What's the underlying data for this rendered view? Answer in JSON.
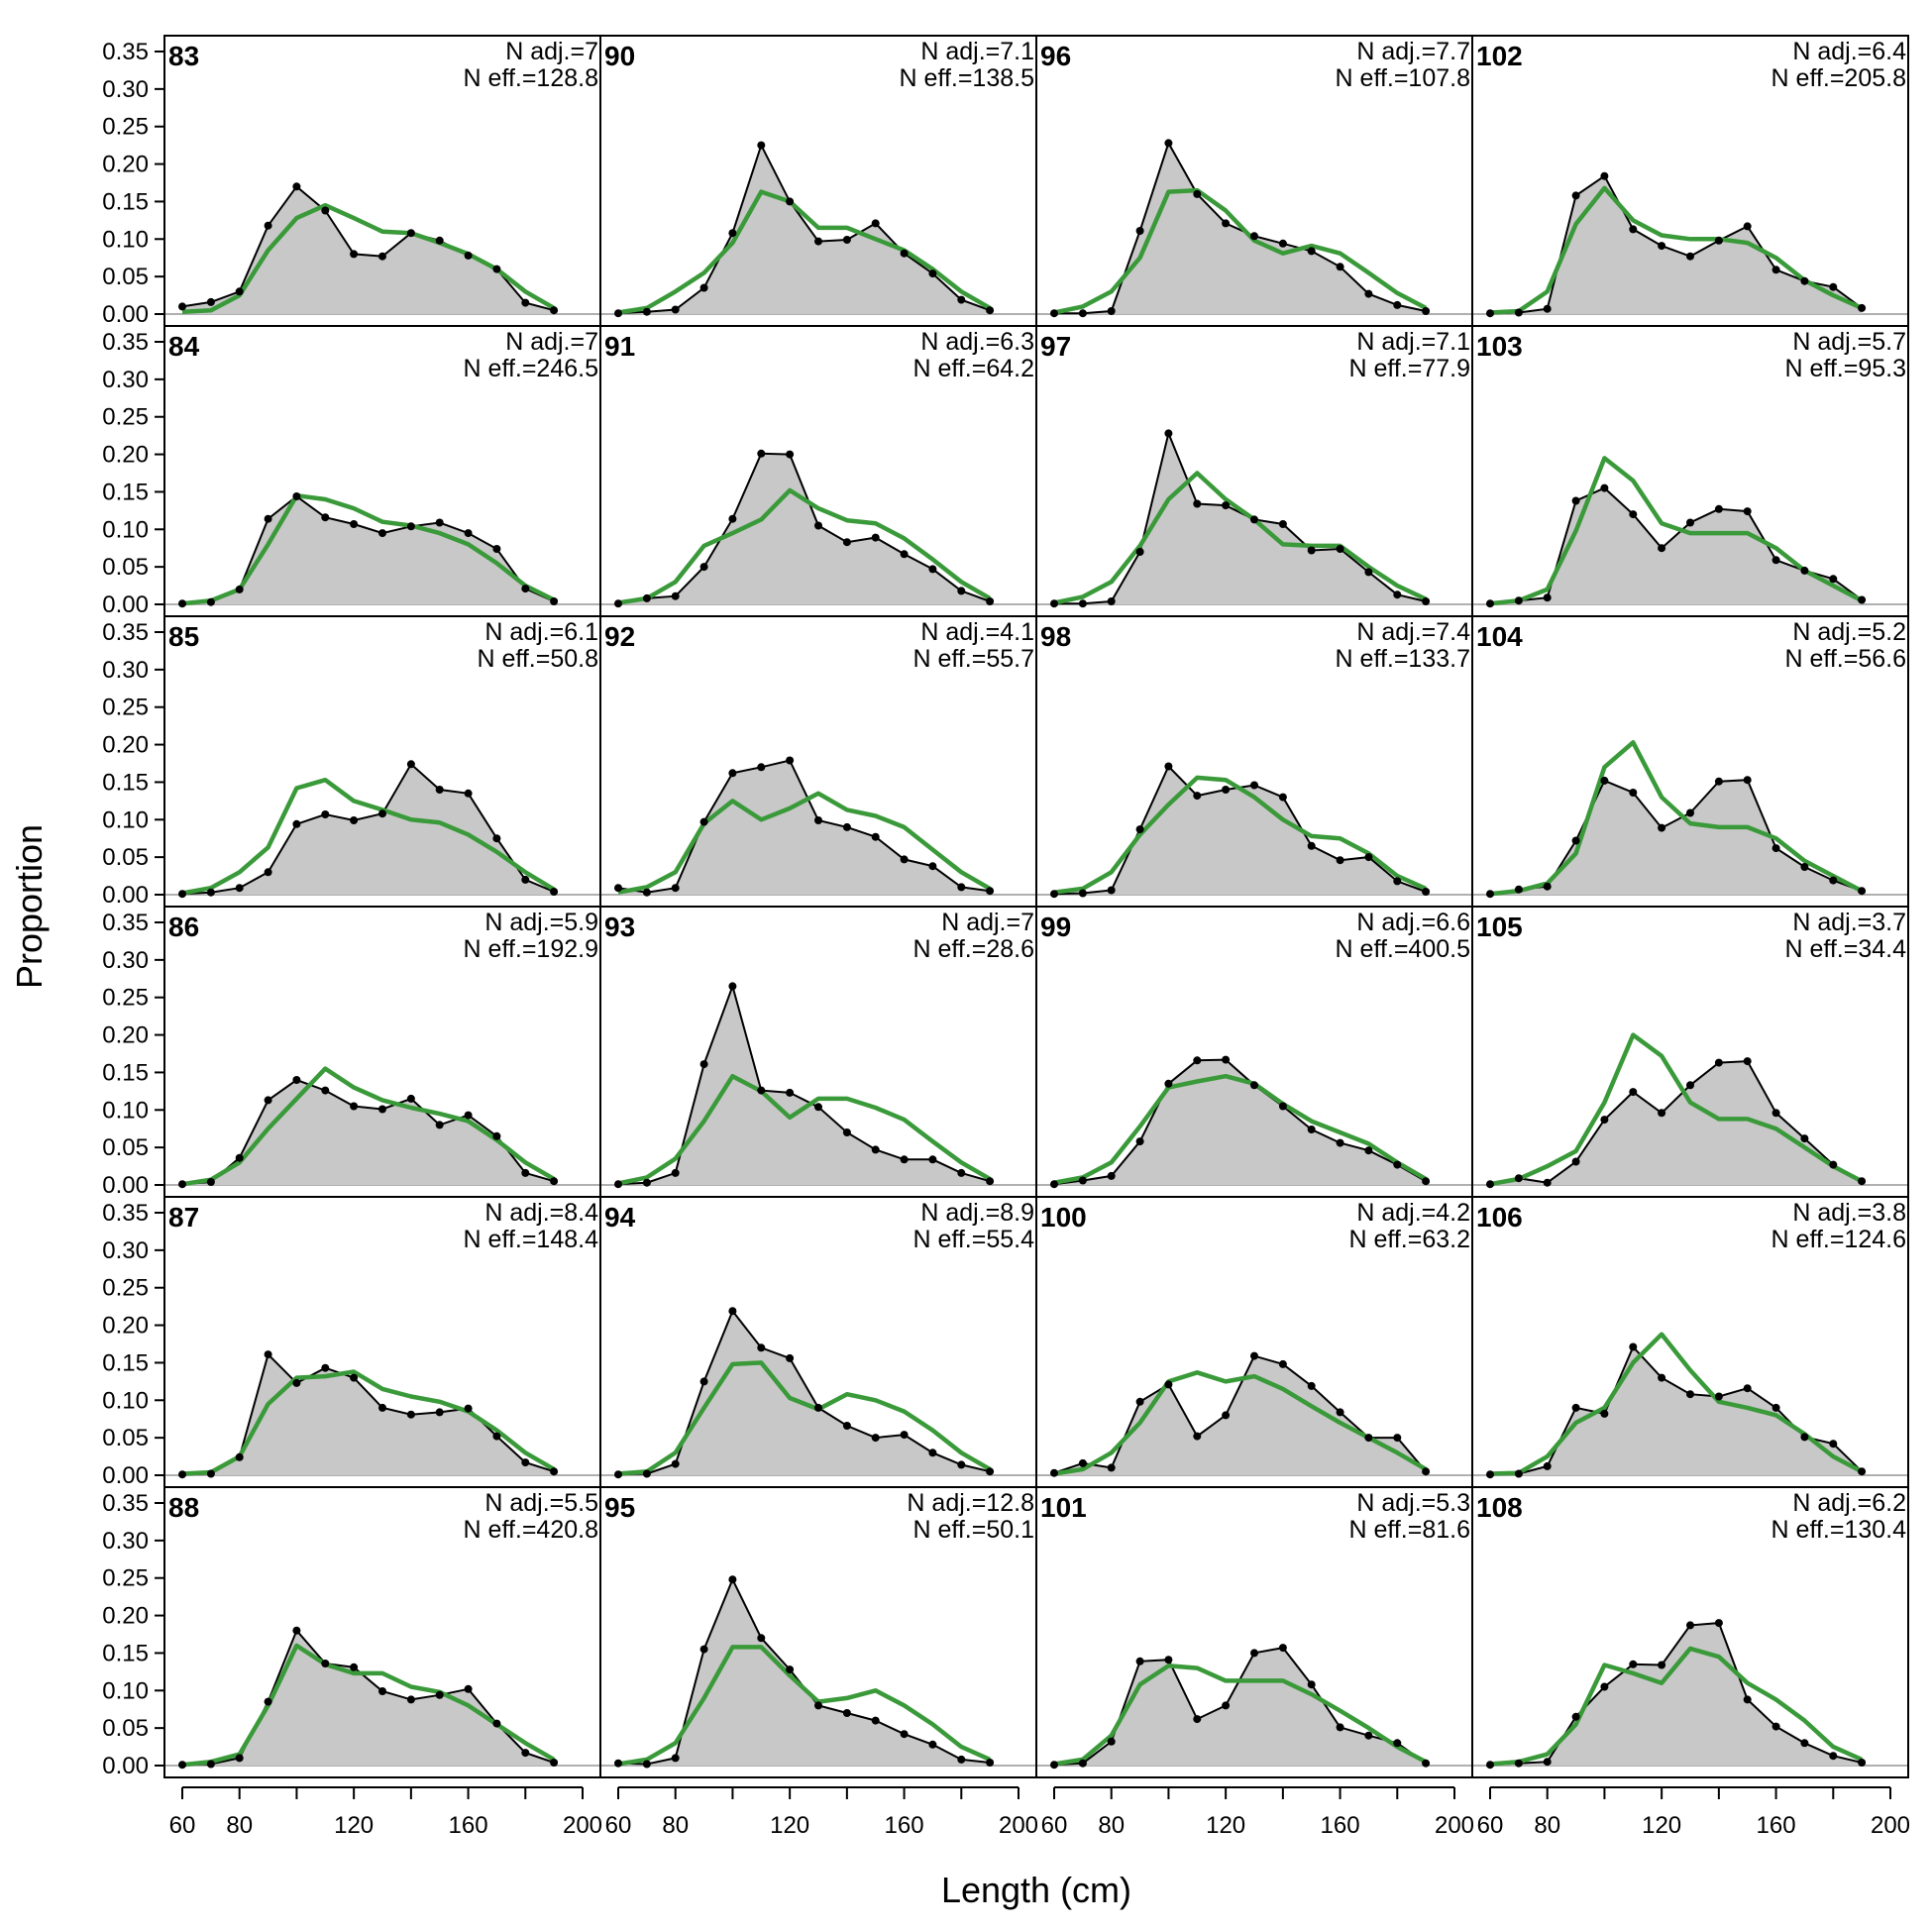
{
  "chart_data": {
    "type": "area",
    "xlabel": "Length (cm)",
    "ylabel": "Proportion",
    "xlim": [
      60,
      200
    ],
    "ylim": [
      0,
      0.35
    ],
    "x_ticks": [
      60,
      80,
      120,
      160,
      200
    ],
    "y_ticks": [
      0.0,
      0.05,
      0.1,
      0.15,
      0.2,
      0.25,
      0.3,
      0.35
    ],
    "y_tick_labels": [
      "0.00",
      "0.05",
      "0.10",
      "0.15",
      "0.20",
      "0.25",
      "0.30",
      "0.35"
    ],
    "x": [
      60,
      70,
      80,
      90,
      100,
      110,
      120,
      130,
      140,
      150,
      160,
      170,
      180,
      190
    ],
    "colors": {
      "observed_fill": "#c8c8c8",
      "observed_line": "#000000",
      "expected_line": "#3a9a3a",
      "zero_line": "#b0b0b0"
    },
    "grid": false,
    "layout": {
      "columns": 4,
      "rows": 6
    },
    "panels": [
      {
        "label": "83",
        "n_adj": "N adj.=7",
        "n_eff": "N eff.=128.8",
        "observed": [
          0.01,
          0.016,
          0.03,
          0.118,
          0.17,
          0.138,
          0.08,
          0.077,
          0.108,
          0.098,
          0.078,
          0.06,
          0.015,
          0.005
        ],
        "expected": [
          0.003,
          0.005,
          0.025,
          0.085,
          0.128,
          0.145,
          0.128,
          0.11,
          0.108,
          0.095,
          0.08,
          0.06,
          0.03,
          0.008
        ]
      },
      {
        "label": "84",
        "n_adj": "N adj.=7",
        "n_eff": "N eff.=246.5",
        "observed": [
          0.001,
          0.003,
          0.02,
          0.114,
          0.144,
          0.116,
          0.107,
          0.095,
          0.104,
          0.109,
          0.095,
          0.074,
          0.021,
          0.004
        ],
        "expected": [
          0.001,
          0.005,
          0.02,
          0.08,
          0.145,
          0.14,
          0.128,
          0.11,
          0.105,
          0.095,
          0.08,
          0.055,
          0.025,
          0.006
        ]
      },
      {
        "label": "85",
        "n_adj": "N adj.=6.1",
        "n_eff": "N eff.=50.8",
        "observed": [
          0.001,
          0.003,
          0.009,
          0.03,
          0.094,
          0.107,
          0.099,
          0.108,
          0.174,
          0.14,
          0.135,
          0.075,
          0.02,
          0.004
        ],
        "expected": [
          0.002,
          0.009,
          0.03,
          0.063,
          0.142,
          0.153,
          0.125,
          0.113,
          0.1,
          0.096,
          0.08,
          0.057,
          0.03,
          0.007
        ]
      },
      {
        "label": "86",
        "n_adj": "N adj.=5.9",
        "n_eff": "N eff.=192.9",
        "observed": [
          0.001,
          0.004,
          0.036,
          0.113,
          0.14,
          0.126,
          0.105,
          0.101,
          0.115,
          0.08,
          0.093,
          0.065,
          0.016,
          0.005
        ],
        "expected": [
          0.001,
          0.007,
          0.03,
          0.075,
          0.115,
          0.155,
          0.13,
          0.113,
          0.103,
          0.095,
          0.085,
          0.06,
          0.03,
          0.008
        ]
      },
      {
        "label": "87",
        "n_adj": "N adj.=8.4",
        "n_eff": "N eff.=148.4",
        "observed": [
          0.001,
          0.002,
          0.024,
          0.161,
          0.123,
          0.143,
          0.13,
          0.09,
          0.081,
          0.084,
          0.089,
          0.052,
          0.017,
          0.005
        ],
        "expected": [
          0.002,
          0.004,
          0.025,
          0.095,
          0.13,
          0.132,
          0.138,
          0.115,
          0.105,
          0.098,
          0.085,
          0.06,
          0.03,
          0.008
        ]
      },
      {
        "label": "88",
        "n_adj": "N adj.=5.5",
        "n_eff": "N eff.=420.8",
        "observed": [
          0.001,
          0.002,
          0.01,
          0.085,
          0.18,
          0.136,
          0.131,
          0.099,
          0.088,
          0.094,
          0.102,
          0.056,
          0.017,
          0.004
        ],
        "expected": [
          0.001,
          0.005,
          0.015,
          0.08,
          0.16,
          0.135,
          0.123,
          0.123,
          0.105,
          0.098,
          0.08,
          0.055,
          0.03,
          0.008
        ]
      },
      {
        "label": "90",
        "n_adj": "N adj.=7.1",
        "n_eff": "N eff.=138.5",
        "observed": [
          0.001,
          0.003,
          0.006,
          0.035,
          0.108,
          0.225,
          0.15,
          0.097,
          0.099,
          0.121,
          0.081,
          0.054,
          0.019,
          0.005
        ],
        "expected": [
          0.002,
          0.008,
          0.03,
          0.055,
          0.095,
          0.163,
          0.15,
          0.115,
          0.115,
          0.1,
          0.085,
          0.06,
          0.03,
          0.008
        ]
      },
      {
        "label": "91",
        "n_adj": "N adj.=6.3",
        "n_eff": "N eff.=64.2",
        "observed": [
          0.001,
          0.008,
          0.011,
          0.05,
          0.114,
          0.201,
          0.2,
          0.105,
          0.083,
          0.089,
          0.067,
          0.047,
          0.018,
          0.004
        ],
        "expected": [
          0.002,
          0.008,
          0.03,
          0.078,
          0.095,
          0.113,
          0.152,
          0.128,
          0.112,
          0.108,
          0.088,
          0.06,
          0.03,
          0.008
        ]
      },
      {
        "label": "92",
        "n_adj": "N adj.=4.1",
        "n_eff": "N eff.=55.7",
        "observed": [
          0.009,
          0.003,
          0.009,
          0.097,
          0.162,
          0.17,
          0.179,
          0.099,
          0.09,
          0.077,
          0.047,
          0.038,
          0.01,
          0.005
        ],
        "expected": [
          0.003,
          0.01,
          0.03,
          0.095,
          0.125,
          0.1,
          0.115,
          0.135,
          0.113,
          0.105,
          0.09,
          0.06,
          0.03,
          0.008
        ]
      },
      {
        "label": "93",
        "n_adj": "N adj.=7",
        "n_eff": "N eff.=28.6",
        "observed": [
          0.001,
          0.003,
          0.016,
          0.161,
          0.265,
          0.126,
          0.123,
          0.104,
          0.07,
          0.047,
          0.034,
          0.034,
          0.016,
          0.005
        ],
        "expected": [
          0.002,
          0.01,
          0.035,
          0.085,
          0.145,
          0.125,
          0.09,
          0.115,
          0.115,
          0.103,
          0.087,
          0.058,
          0.03,
          0.008
        ]
      },
      {
        "label": "94",
        "n_adj": "N adj.=8.9",
        "n_eff": "N eff.=55.4",
        "observed": [
          0.001,
          0.002,
          0.015,
          0.125,
          0.219,
          0.17,
          0.156,
          0.09,
          0.066,
          0.05,
          0.054,
          0.03,
          0.014,
          0.005
        ],
        "expected": [
          0.002,
          0.005,
          0.03,
          0.09,
          0.148,
          0.15,
          0.103,
          0.088,
          0.108,
          0.1,
          0.085,
          0.06,
          0.03,
          0.008
        ]
      },
      {
        "label": "95",
        "n_adj": "N adj.=12.8",
        "n_eff": "N eff.=50.1",
        "observed": [
          0.003,
          0.002,
          0.01,
          0.155,
          0.248,
          0.17,
          0.128,
          0.08,
          0.07,
          0.06,
          0.042,
          0.028,
          0.008,
          0.004
        ],
        "expected": [
          0.002,
          0.008,
          0.03,
          0.09,
          0.158,
          0.158,
          0.12,
          0.085,
          0.09,
          0.1,
          0.08,
          0.055,
          0.025,
          0.008
        ]
      },
      {
        "label": "96",
        "n_adj": "N adj.=7.7",
        "n_eff": "N eff.=107.8",
        "observed": [
          0.001,
          0.001,
          0.004,
          0.111,
          0.228,
          0.16,
          0.121,
          0.104,
          0.094,
          0.084,
          0.063,
          0.027,
          0.012,
          0.004
        ],
        "expected": [
          0.002,
          0.01,
          0.03,
          0.075,
          0.163,
          0.165,
          0.138,
          0.098,
          0.081,
          0.091,
          0.081,
          0.055,
          0.028,
          0.008
        ]
      },
      {
        "label": "97",
        "n_adj": "N adj.=7.1",
        "n_eff": "N eff.=77.9",
        "observed": [
          0.001,
          0.001,
          0.004,
          0.07,
          0.228,
          0.134,
          0.132,
          0.113,
          0.107,
          0.072,
          0.074,
          0.043,
          0.013,
          0.004
        ],
        "expected": [
          0.002,
          0.01,
          0.03,
          0.078,
          0.14,
          0.175,
          0.14,
          0.113,
          0.08,
          0.078,
          0.078,
          0.05,
          0.025,
          0.007
        ]
      },
      {
        "label": "98",
        "n_adj": "N adj.=7.4",
        "n_eff": "N eff.=133.7",
        "observed": [
          0.001,
          0.002,
          0.006,
          0.087,
          0.171,
          0.132,
          0.14,
          0.146,
          0.13,
          0.065,
          0.046,
          0.05,
          0.018,
          0.004
        ],
        "expected": [
          0.003,
          0.008,
          0.03,
          0.08,
          0.12,
          0.156,
          0.153,
          0.13,
          0.1,
          0.078,
          0.075,
          0.055,
          0.025,
          0.008
        ]
      },
      {
        "label": "99",
        "n_adj": "N adj.=6.6",
        "n_eff": "N eff.=400.5",
        "observed": [
          0.001,
          0.006,
          0.012,
          0.058,
          0.135,
          0.166,
          0.167,
          0.133,
          0.105,
          0.074,
          0.056,
          0.046,
          0.027,
          0.005
        ],
        "expected": [
          0.003,
          0.01,
          0.03,
          0.078,
          0.13,
          0.138,
          0.145,
          0.135,
          0.108,
          0.085,
          0.07,
          0.055,
          0.03,
          0.008
        ]
      },
      {
        "label": "100",
        "n_adj": "N adj.=4.2",
        "n_eff": "N eff.=63.2",
        "observed": [
          0.003,
          0.016,
          0.01,
          0.098,
          0.121,
          0.052,
          0.08,
          0.159,
          0.148,
          0.119,
          0.084,
          0.05,
          0.05,
          0.005
        ],
        "expected": [
          0.002,
          0.008,
          0.03,
          0.07,
          0.125,
          0.137,
          0.125,
          0.132,
          0.115,
          0.092,
          0.07,
          0.05,
          0.03,
          0.008
        ]
      },
      {
        "label": "101",
        "n_adj": "N adj.=5.3",
        "n_eff": "N eff.=81.6",
        "observed": [
          0.001,
          0.003,
          0.032,
          0.139,
          0.141,
          0.062,
          0.08,
          0.15,
          0.157,
          0.108,
          0.051,
          0.04,
          0.03,
          0.003
        ],
        "expected": [
          0.002,
          0.008,
          0.04,
          0.108,
          0.133,
          0.13,
          0.113,
          0.113,
          0.113,
          0.095,
          0.073,
          0.05,
          0.025,
          0.005
        ]
      },
      {
        "label": "102",
        "n_adj": "N adj.=6.4",
        "n_eff": "N eff.=205.8",
        "observed": [
          0.001,
          0.002,
          0.007,
          0.158,
          0.184,
          0.113,
          0.091,
          0.077,
          0.098,
          0.117,
          0.059,
          0.044,
          0.036,
          0.008
        ],
        "expected": [
          0.002,
          0.004,
          0.03,
          0.12,
          0.168,
          0.125,
          0.105,
          0.1,
          0.1,
          0.095,
          0.075,
          0.045,
          0.025,
          0.008
        ]
      },
      {
        "label": "103",
        "n_adj": "N adj.=5.7",
        "n_eff": "N eff.=95.3",
        "observed": [
          0.001,
          0.005,
          0.009,
          0.138,
          0.155,
          0.12,
          0.075,
          0.109,
          0.127,
          0.124,
          0.059,
          0.045,
          0.034,
          0.006
        ],
        "expected": [
          0.001,
          0.005,
          0.02,
          0.098,
          0.195,
          0.165,
          0.108,
          0.095,
          0.095,
          0.095,
          0.075,
          0.045,
          0.025,
          0.005
        ]
      },
      {
        "label": "104",
        "n_adj": "N adj.=5.2",
        "n_eff": "N eff.=56.6",
        "observed": [
          0.001,
          0.007,
          0.011,
          0.072,
          0.152,
          0.136,
          0.089,
          0.109,
          0.151,
          0.153,
          0.062,
          0.037,
          0.019,
          0.005
        ],
        "expected": [
          0.001,
          0.005,
          0.015,
          0.055,
          0.17,
          0.203,
          0.13,
          0.095,
          0.09,
          0.09,
          0.075,
          0.045,
          0.025,
          0.005
        ]
      },
      {
        "label": "105",
        "n_adj": "N adj.=3.7",
        "n_eff": "N eff.=34.4",
        "observed": [
          0.001,
          0.009,
          0.003,
          0.031,
          0.087,
          0.124,
          0.096,
          0.133,
          0.163,
          0.165,
          0.096,
          0.062,
          0.027,
          0.005
        ],
        "expected": [
          0.001,
          0.008,
          0.025,
          0.045,
          0.11,
          0.2,
          0.172,
          0.11,
          0.088,
          0.088,
          0.075,
          0.05,
          0.025,
          0.005
        ]
      },
      {
        "label": "106",
        "n_adj": "N adj.=3.8",
        "n_eff": "N eff.=124.6",
        "observed": [
          0.001,
          0.002,
          0.012,
          0.09,
          0.082,
          0.171,
          0.13,
          0.108,
          0.105,
          0.116,
          0.09,
          0.051,
          0.042,
          0.005
        ],
        "expected": [
          0.002,
          0.003,
          0.025,
          0.07,
          0.09,
          0.15,
          0.188,
          0.14,
          0.098,
          0.09,
          0.08,
          0.055,
          0.025,
          0.005
        ]
      },
      {
        "label": "108",
        "n_adj": "N adj.=6.2",
        "n_eff": "N eff.=130.4",
        "observed": [
          0.001,
          0.003,
          0.005,
          0.065,
          0.105,
          0.135,
          0.134,
          0.187,
          0.19,
          0.088,
          0.052,
          0.03,
          0.013,
          0.004
        ],
        "expected": [
          0.002,
          0.005,
          0.015,
          0.055,
          0.134,
          0.123,
          0.11,
          0.156,
          0.145,
          0.11,
          0.088,
          0.06,
          0.025,
          0.008
        ]
      }
    ]
  }
}
